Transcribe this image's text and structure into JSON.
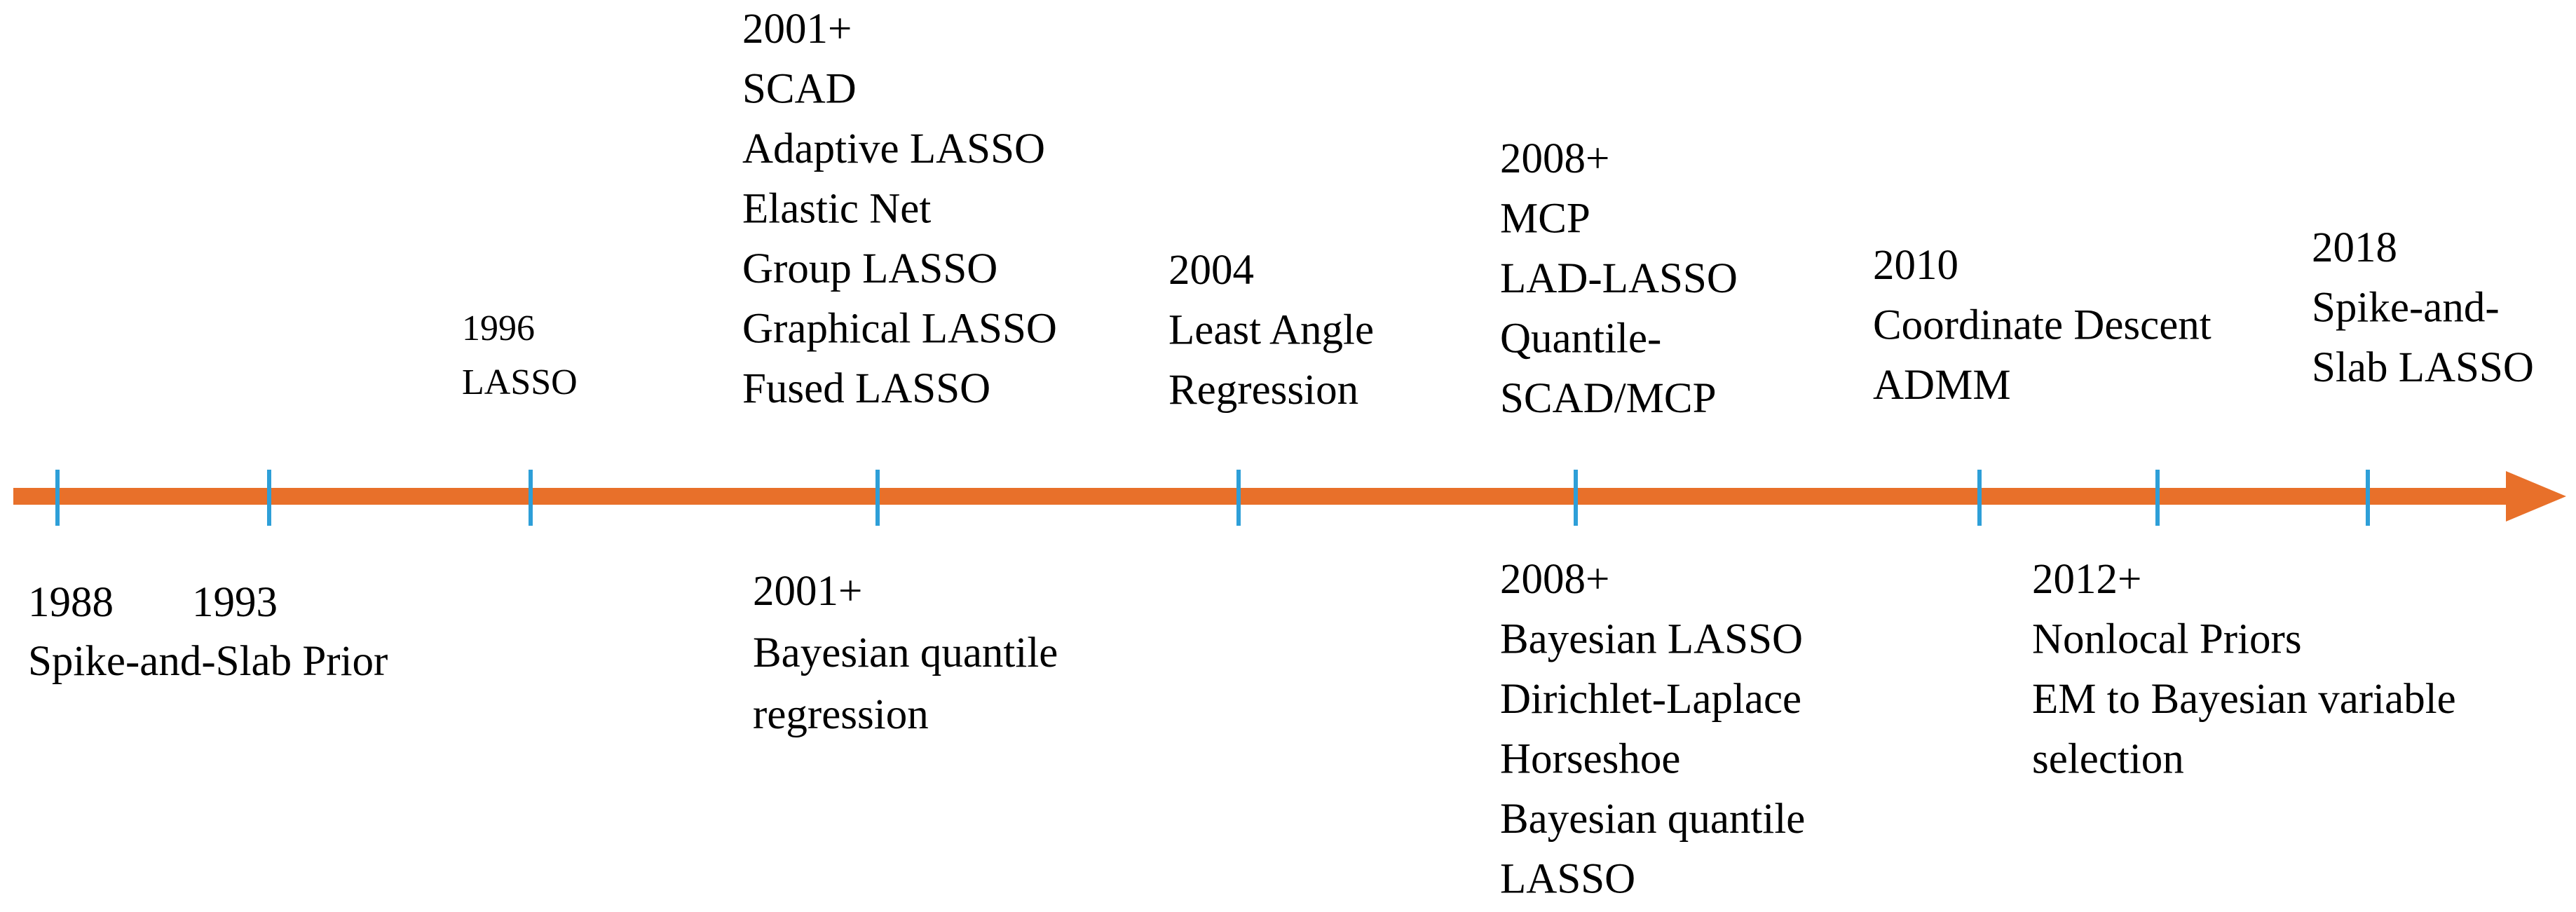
{
  "above": [
    {
      "lines": [
        "1996",
        "LASSO"
      ]
    },
    {
      "lines": [
        "2001+",
        "SCAD",
        "Adaptive LASSO",
        "Elastic Net",
        "Group LASSO",
        "Graphical LASSO",
        "Fused LASSO"
      ]
    },
    {
      "lines": [
        "2004",
        "Least Angle",
        "Regression"
      ]
    },
    {
      "lines": [
        "2008+",
        "MCP",
        "LAD-LASSO",
        "Quantile-",
        "SCAD/MCP"
      ]
    },
    {
      "lines": [
        "2010",
        "Coordinate Descent",
        "ADMM"
      ]
    },
    {
      "lines": [
        "2018",
        "Spike-and-",
        "Slab LASSO"
      ]
    }
  ],
  "below": [
    {
      "lines": [
        "1988",
        "Spike-and-Slab Prior"
      ]
    },
    {
      "lines": [
        "1993"
      ]
    },
    {
      "lines": [
        "2001+",
        "Bayesian quantile",
        "regression"
      ]
    },
    {
      "lines": [
        "2008+",
        "Bayesian LASSO",
        "Dirichlet-Laplace",
        "Horseshoe",
        "Bayesian quantile",
        "LASSO"
      ]
    },
    {
      "lines": [
        "2012+",
        "Nonlocal Priors",
        "EM to Bayesian variable",
        "selection"
      ]
    }
  ]
}
